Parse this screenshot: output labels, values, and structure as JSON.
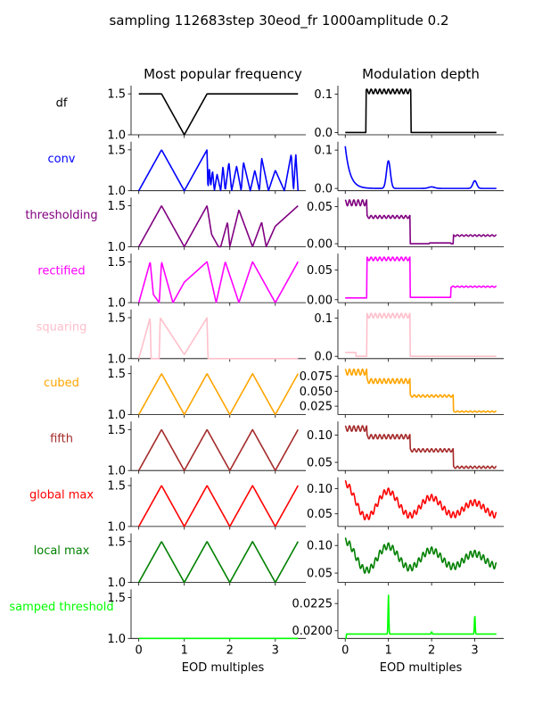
{
  "figure": {
    "suptitle": "sampling 112683step 30eod_fr 1000amplitude 0.2",
    "left_title": "Most popular frequency",
    "right_title": "Modulation depth",
    "xlabel": "EOD multiples"
  },
  "chart_data": [
    {
      "type": "line",
      "title": "Most popular frequency",
      "xlabel": "EOD multiples",
      "x_ticks": [
        0,
        1,
        2,
        3
      ],
      "xlim": [
        -0.17,
        3.67
      ],
      "ylim": [
        1.0,
        1.6
      ],
      "y_ticks": [
        1.0,
        1.5
      ],
      "rows": [
        {
          "label": "df",
          "color": "#000000",
          "pattern": "df"
        },
        {
          "label": "conv",
          "color": "#0000ff",
          "pattern": "conv"
        },
        {
          "label": "thresholding",
          "color": "#800080",
          "pattern": "thresh"
        },
        {
          "label": "rectified",
          "color": "#ff00ff",
          "pattern": "rect"
        },
        {
          "label": "squaring",
          "color": "#ffc0cb",
          "pattern": "square"
        },
        {
          "label": "cubed",
          "color": "#ffa500",
          "pattern": "tri"
        },
        {
          "label": "fifth",
          "color": "#a52a2a",
          "pattern": "tri"
        },
        {
          "label": "global max",
          "color": "#ff0000",
          "pattern": "tri"
        },
        {
          "label": "local max",
          "color": "#008000",
          "pattern": "tri"
        },
        {
          "label": "samped threshold",
          "color": "#00ff00",
          "pattern": "flat"
        }
      ]
    },
    {
      "type": "line",
      "title": "Modulation depth",
      "xlabel": "EOD multiples",
      "x_ticks": [
        0,
        1,
        2,
        3
      ],
      "xlim": [
        -0.17,
        3.67
      ],
      "rows": [
        {
          "label": "df",
          "ylim": [
            -0.006,
            0.122
          ],
          "y_ticks": [
            "0.0",
            "0.1"
          ],
          "y_tick_values": [
            0.0,
            0.1
          ],
          "pattern": "df"
        },
        {
          "label": "conv",
          "ylim": [
            -0.006,
            0.122
          ],
          "y_ticks": [
            "0.0",
            "0.1"
          ],
          "y_tick_values": [
            0.0,
            0.1
          ],
          "pattern": "conv"
        },
        {
          "label": "thresholding",
          "ylim": [
            -0.004,
            0.062
          ],
          "y_ticks": [
            "0.00",
            "0.05"
          ],
          "y_tick_values": [
            0.0,
            0.05
          ],
          "pattern": "thresh"
        },
        {
          "label": "rectified",
          "ylim": [
            -0.005,
            0.078
          ],
          "y_ticks": [
            "0.00",
            "0.05"
          ],
          "y_tick_values": [
            0.0,
            0.05
          ],
          "pattern": "rect"
        },
        {
          "label": "squaring",
          "ylim": [
            -0.006,
            0.122
          ],
          "y_ticks": [
            "0.0",
            "0.1"
          ],
          "y_tick_values": [
            0.0,
            0.1
          ],
          "pattern": "square"
        },
        {
          "label": "cubed",
          "ylim": [
            0.011,
            0.093
          ],
          "y_ticks": [
            "0.025",
            "0.050",
            "0.075"
          ],
          "y_tick_values": [
            0.025,
            0.05,
            0.075
          ],
          "pattern": "cubed"
        },
        {
          "label": "fifth",
          "ylim": [
            0.035,
            0.125
          ],
          "y_ticks": [
            "0.05",
            "0.10"
          ],
          "y_tick_values": [
            0.05,
            0.1
          ],
          "pattern": "fifth"
        },
        {
          "label": "global max",
          "ylim": [
            0.025,
            0.122
          ],
          "y_ticks": [
            "0.05",
            "0.10"
          ],
          "y_tick_values": [
            0.05,
            0.1
          ],
          "pattern": "gmax"
        },
        {
          "label": "local max",
          "ylim": [
            0.033,
            0.122
          ],
          "y_ticks": [
            "0.05",
            "0.10"
          ],
          "y_tick_values": [
            0.05,
            0.1
          ],
          "pattern": "lmax"
        },
        {
          "label": "samped threshold",
          "ylim": [
            0.0193,
            0.0238
          ],
          "y_ticks": [
            "0.0200",
            "0.0225"
          ],
          "y_tick_values": [
            0.02,
            0.0225
          ],
          "pattern": "samp"
        }
      ]
    }
  ]
}
